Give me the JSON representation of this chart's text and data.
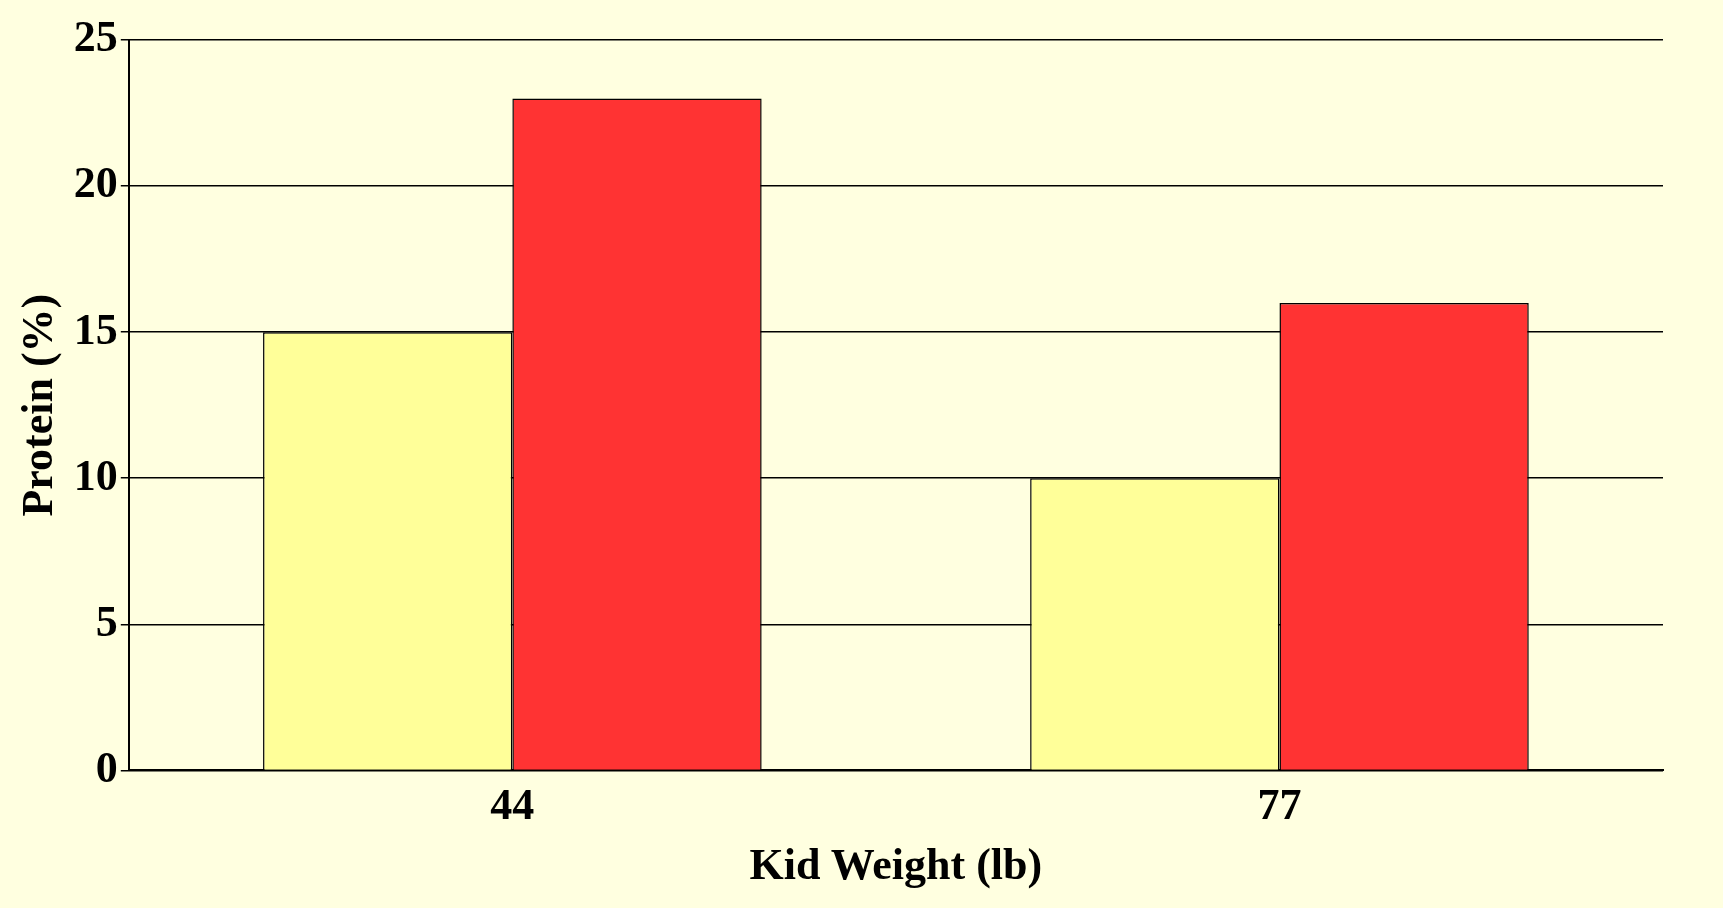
{
  "chart_data": {
    "type": "bar",
    "xlabel": "Kid Weight (lb)",
    "ylabel": "Protein (%)",
    "categories": [
      "44",
      "77"
    ],
    "series": [
      {
        "color": "#ffff99",
        "values": [
          15,
          10
        ]
      },
      {
        "color": "#ff3333",
        "values": [
          23,
          16
        ]
      }
    ],
    "ylim": [
      0,
      25
    ],
    "yticks": [
      0,
      5,
      10,
      15,
      20,
      25
    ],
    "grid": "y",
    "legend": false
  }
}
